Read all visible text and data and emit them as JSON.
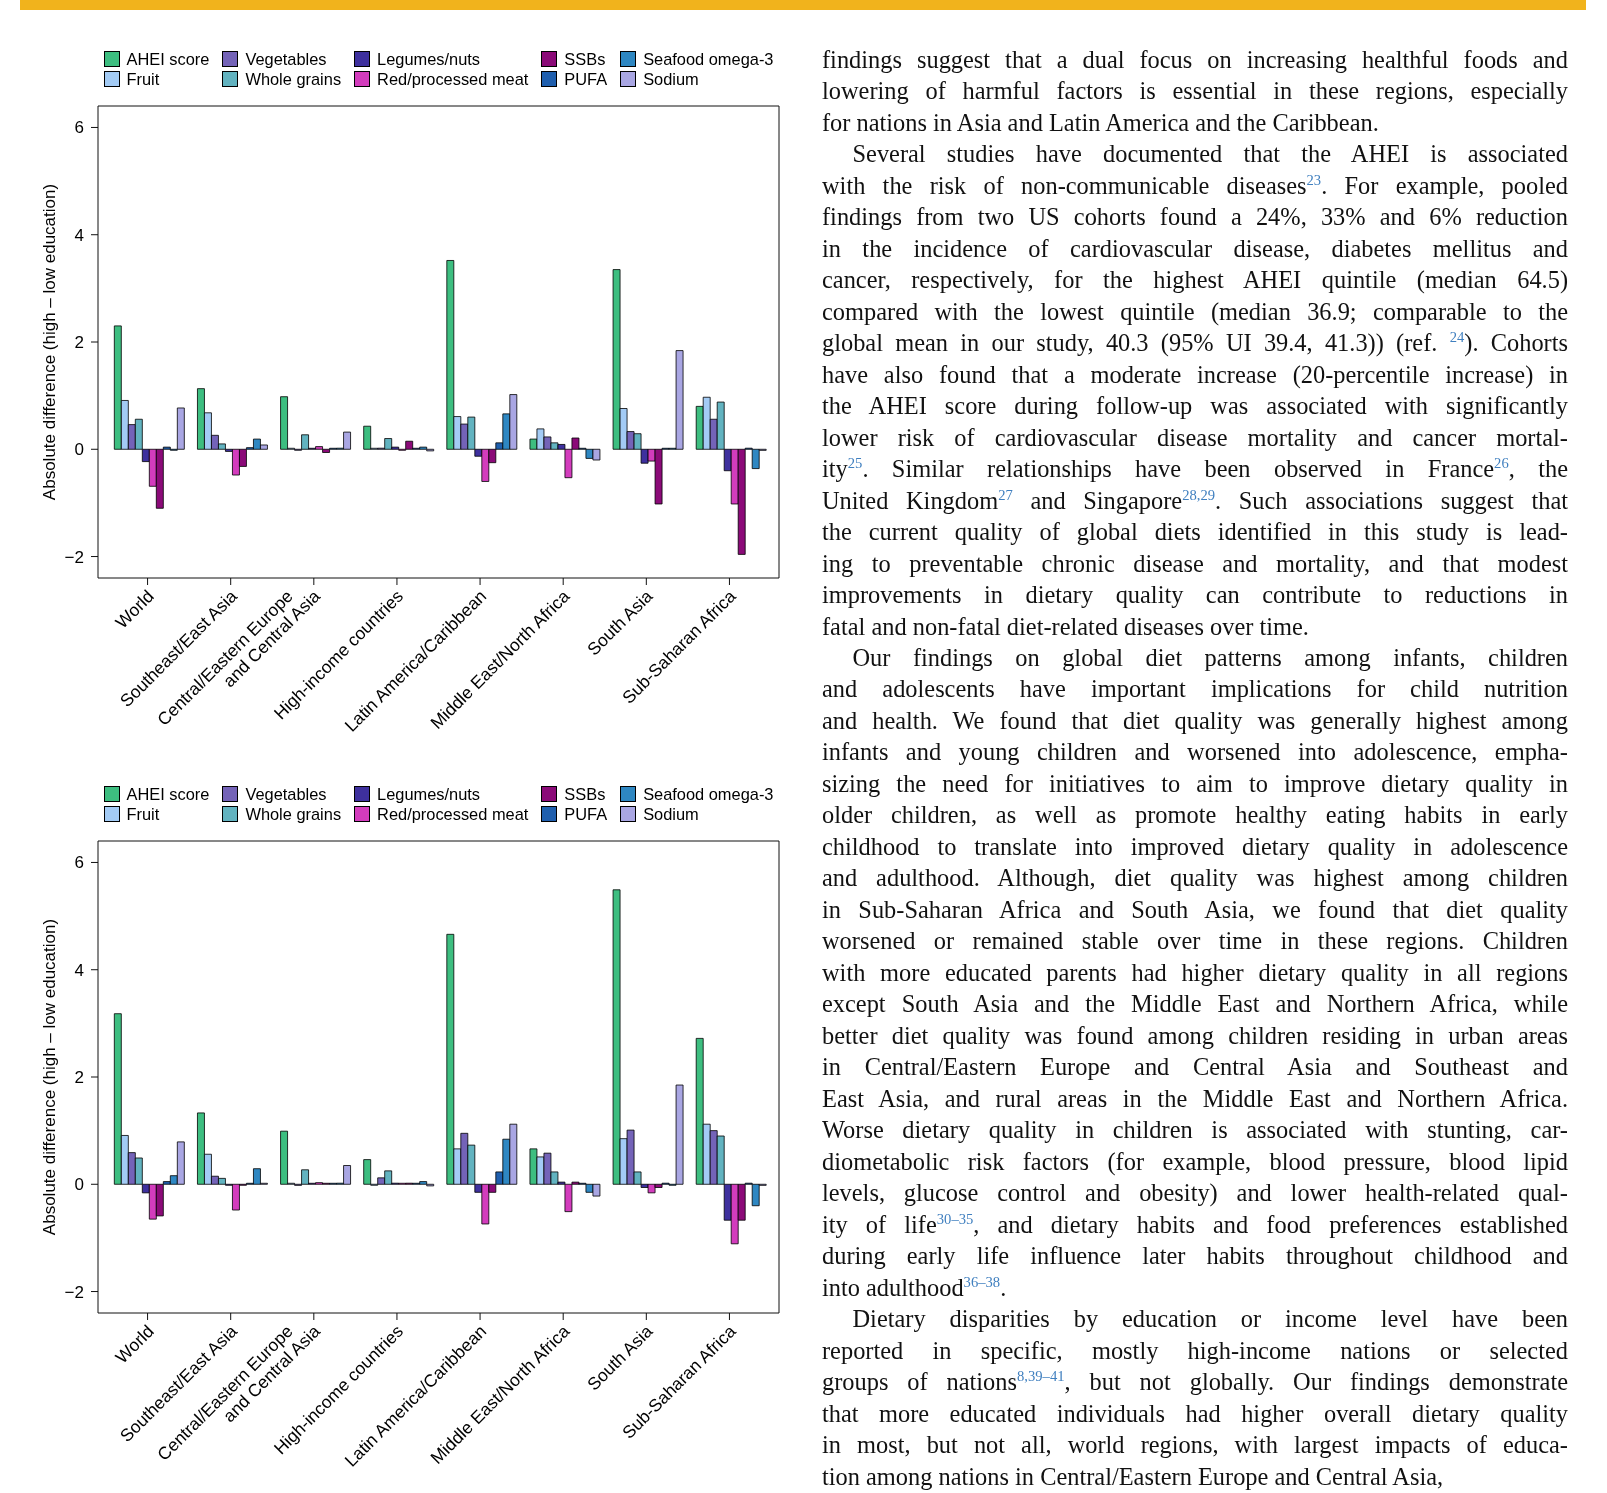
{
  "chart_data": [
    {
      "type": "bar",
      "ylabel": "Absolute difference (high – low education)",
      "categories": [
        "World",
        "Southeast/East Asia",
        "Central/Eastern Europe\nand Central Asia",
        "High-income countries",
        "Latin America/Caribbean",
        "Middle East/North Africa",
        "South Asia",
        "Sub-Saharan Africa"
      ],
      "series": [
        {
          "name": "AHEI score",
          "color": "#3dbe80",
          "values": [
            2.3,
            1.13,
            0.98,
            0.43,
            3.52,
            0.19,
            3.35,
            0.8
          ]
        },
        {
          "name": "Fruit",
          "color": "#a3cbf5",
          "values": [
            0.91,
            0.68,
            0,
            0,
            0.61,
            0.38,
            0.76,
            0.97
          ]
        },
        {
          "name": "Vegetables",
          "color": "#7463b8",
          "values": [
            0.46,
            0.26,
            -0.01,
            0.02,
            0.47,
            0.23,
            0.33,
            0.56
          ]
        },
        {
          "name": "Whole grains",
          "color": "#62b3c0",
          "values": [
            0.56,
            0.1,
            0.27,
            0.2,
            0.6,
            0.12,
            0.29,
            0.88
          ]
        },
        {
          "name": "Legumes/nuts",
          "color": "#3e309e",
          "values": [
            -0.23,
            -0.04,
            0,
            0.04,
            -0.13,
            0.09,
            -0.26,
            -0.4
          ]
        },
        {
          "name": "Red/processed meat",
          "color": "#d33cbd",
          "values": [
            -0.69,
            -0.48,
            0.05,
            -0.01,
            -0.6,
            -0.53,
            -0.22,
            -1.02
          ]
        },
        {
          "name": "SSBs",
          "color": "#8b0a78",
          "values": [
            -1.1,
            -0.32,
            -0.06,
            0.15,
            -0.25,
            0.21,
            -1.02,
            -1.96
          ]
        },
        {
          "name": "PUFA",
          "color": "#1f5fae",
          "values": [
            0.04,
            0.03,
            0,
            0,
            0.12,
            0,
            0.01,
            0.02
          ]
        },
        {
          "name": "Seafood omega-3",
          "color": "#2e87c2",
          "values": [
            -0.01,
            0.19,
            0.02,
            0.04,
            0.66,
            -0.17,
            0,
            -0.36
          ]
        },
        {
          "name": "Sodium",
          "color": "#a9a6e3",
          "values": [
            0.77,
            0.08,
            0.32,
            -0.03,
            1.02,
            -0.2,
            1.84,
            -0.02
          ]
        }
      ],
      "ylim": [
        -2.4,
        6.4
      ],
      "yticks": [
        {
          "value": -2,
          "label": "−2"
        },
        0,
        2,
        4,
        6
      ],
      "legend": "top"
    },
    {
      "type": "bar",
      "ylabel": "Absolute difference (high – low education)",
      "categories": [
        "World",
        "Southeast/East Asia",
        "Central/Eastern Europe\nand Central Asia",
        "High-income countries",
        "Latin America/Caribbean",
        "Middle East/North Africa",
        "South Asia",
        "Sub-Saharan Africa"
      ],
      "series": [
        {
          "name": "AHEI score",
          "color": "#3dbe80",
          "values": [
            3.18,
            1.33,
            0.99,
            0.46,
            4.66,
            0.66,
            5.49,
            2.72
          ]
        },
        {
          "name": "Fruit",
          "color": "#a3cbf5",
          "values": [
            0.91,
            0.56,
            0,
            -0.01,
            0.66,
            0.51,
            0.85,
            1.12
          ]
        },
        {
          "name": "Vegetables",
          "color": "#7463b8",
          "values": [
            0.59,
            0.15,
            -0.02,
            0.12,
            0.95,
            0.58,
            1.01,
            1.0
          ]
        },
        {
          "name": "Whole grains",
          "color": "#62b3c0",
          "values": [
            0.49,
            0.11,
            0.27,
            0.25,
            0.73,
            0.23,
            0.23,
            0.9
          ]
        },
        {
          "name": "Legumes/nuts",
          "color": "#3e309e",
          "values": [
            -0.16,
            -0.01,
            0,
            0.02,
            -0.15,
            0.04,
            -0.06,
            -0.67
          ]
        },
        {
          "name": "Red/processed meat",
          "color": "#d33cbd",
          "values": [
            -0.65,
            -0.48,
            0.03,
            0,
            -0.74,
            -0.51,
            -0.16,
            -1.11
          ]
        },
        {
          "name": "SSBs",
          "color": "#8b0a78",
          "values": [
            -0.59,
            -0.01,
            0,
            0.02,
            -0.15,
            0.04,
            -0.06,
            -0.67
          ]
        },
        {
          "name": "PUFA",
          "color": "#1f5fae",
          "values": [
            0.05,
            0,
            0,
            0.01,
            0.23,
            0.01,
            0.02,
            0.02
          ]
        },
        {
          "name": "Seafood omega-3",
          "color": "#2e87c2",
          "values": [
            0.16,
            0.29,
            0.02,
            0.05,
            0.84,
            -0.15,
            -0.01,
            -0.4
          ]
        },
        {
          "name": "Sodium",
          "color": "#a9a6e3",
          "values": [
            0.79,
            0,
            0.35,
            -0.03,
            1.12,
            -0.22,
            1.85,
            -0.02
          ]
        }
      ],
      "ylim": [
        -2.4,
        6.4
      ],
      "yticks": [
        {
          "value": -2,
          "label": "−2"
        },
        0,
        2,
        4,
        6
      ],
      "legend": "top"
    },
    {
      "type": "other",
      "annotations": [
        "findings suggest that a dual focus on increasing healthful foods and\nlowering of harmful factors is essential in these regions, especially\nfor nations in Asia and Latin America and the Caribbean.",
        "Several studies have documented that the AHEI is associated\nwith the risk of non-communicable diseases$^{23}$. For example, pooled\nfindings from two US cohorts found a 24%, 33% and 6% reduction\nin the incidence of cardiovascular disease, diabetes mellitus and\ncancer, respectively, for the highest AHEI quintile (median 64.5)\ncompared with the lowest quintile (median 36.9; comparable to the\nglobal mean in our study, 40.3 (95% UI 39.4, 41.3)) (ref. $^{24}$). Cohorts\nhave also found that a moderate increase (20-percentile increase) in\nthe AHEI score during follow-up was associated with significantly\nlower risk of cardiovascular disease mortality and cancer mortal-\nity$^{25}$. Similar relationships have been observed in France$^{26}$, the\nUnited Kingdom$^{27}$ and Singapore$^{28,29}$. Such associations suggest that\nthe current quality of global diets identified in this study is lead-\ning to preventable chronic disease and mortality, and that modest\nimprovements in dietary quality can contribute to reductions in\nfatal and non-fatal diet-related diseases over time.",
        "Our findings on global diet patterns among infants, children\nand adolescents have important implications for child nutrition\nand health. We found that diet quality was generally highest among\ninfants and young children and worsened into adolescence, empha-\nsizing the need for initiatives to aim to improve dietary quality in\nolder children, as well as promote healthy eating habits in early\nchildhood to translate into improved dietary quality in adolescence\nand adulthood. Although, diet quality was highest among children\nin Sub-Saharan Africa and South Asia, we found that diet quality\nworsened or remained stable over time in these regions. Children\nwith more educated parents had higher dietary quality in all regions\nexcept South Asia and the Middle East and Northern Africa, while\nbetter diet quality was found among children residing in urban areas\nin Central/Eastern Europe and Central Asia and Southeast and\nEast Asia, and rural areas in the Middle East and Northern Africa.\nWorse dietary quality in children is associated with stunting, car-\ndiometabolic risk factors (for example, blood pressure, blood lipid\nlevels, glucose control and obesity) and lower health-related qual-\nity of life$^{30–35}$, and dietary habits and food preferences established\nduring early life influence later habits throughout childhood and\ninto adulthood$^{36–38}$.",
        "Dietary disparities by education or income level have been\nreported in specific, mostly high-income nations or selected\ngroups of nations$^{8,39–41}$, but not globally. Our findings demonstrate\nthat more educated individuals had higher overall dietary quality\nin most, but not all, world regions, with largest impacts of educa-\ntion among nations in Central/Eastern Europe and Central Asia,"
      ]
    }
  ]
}
